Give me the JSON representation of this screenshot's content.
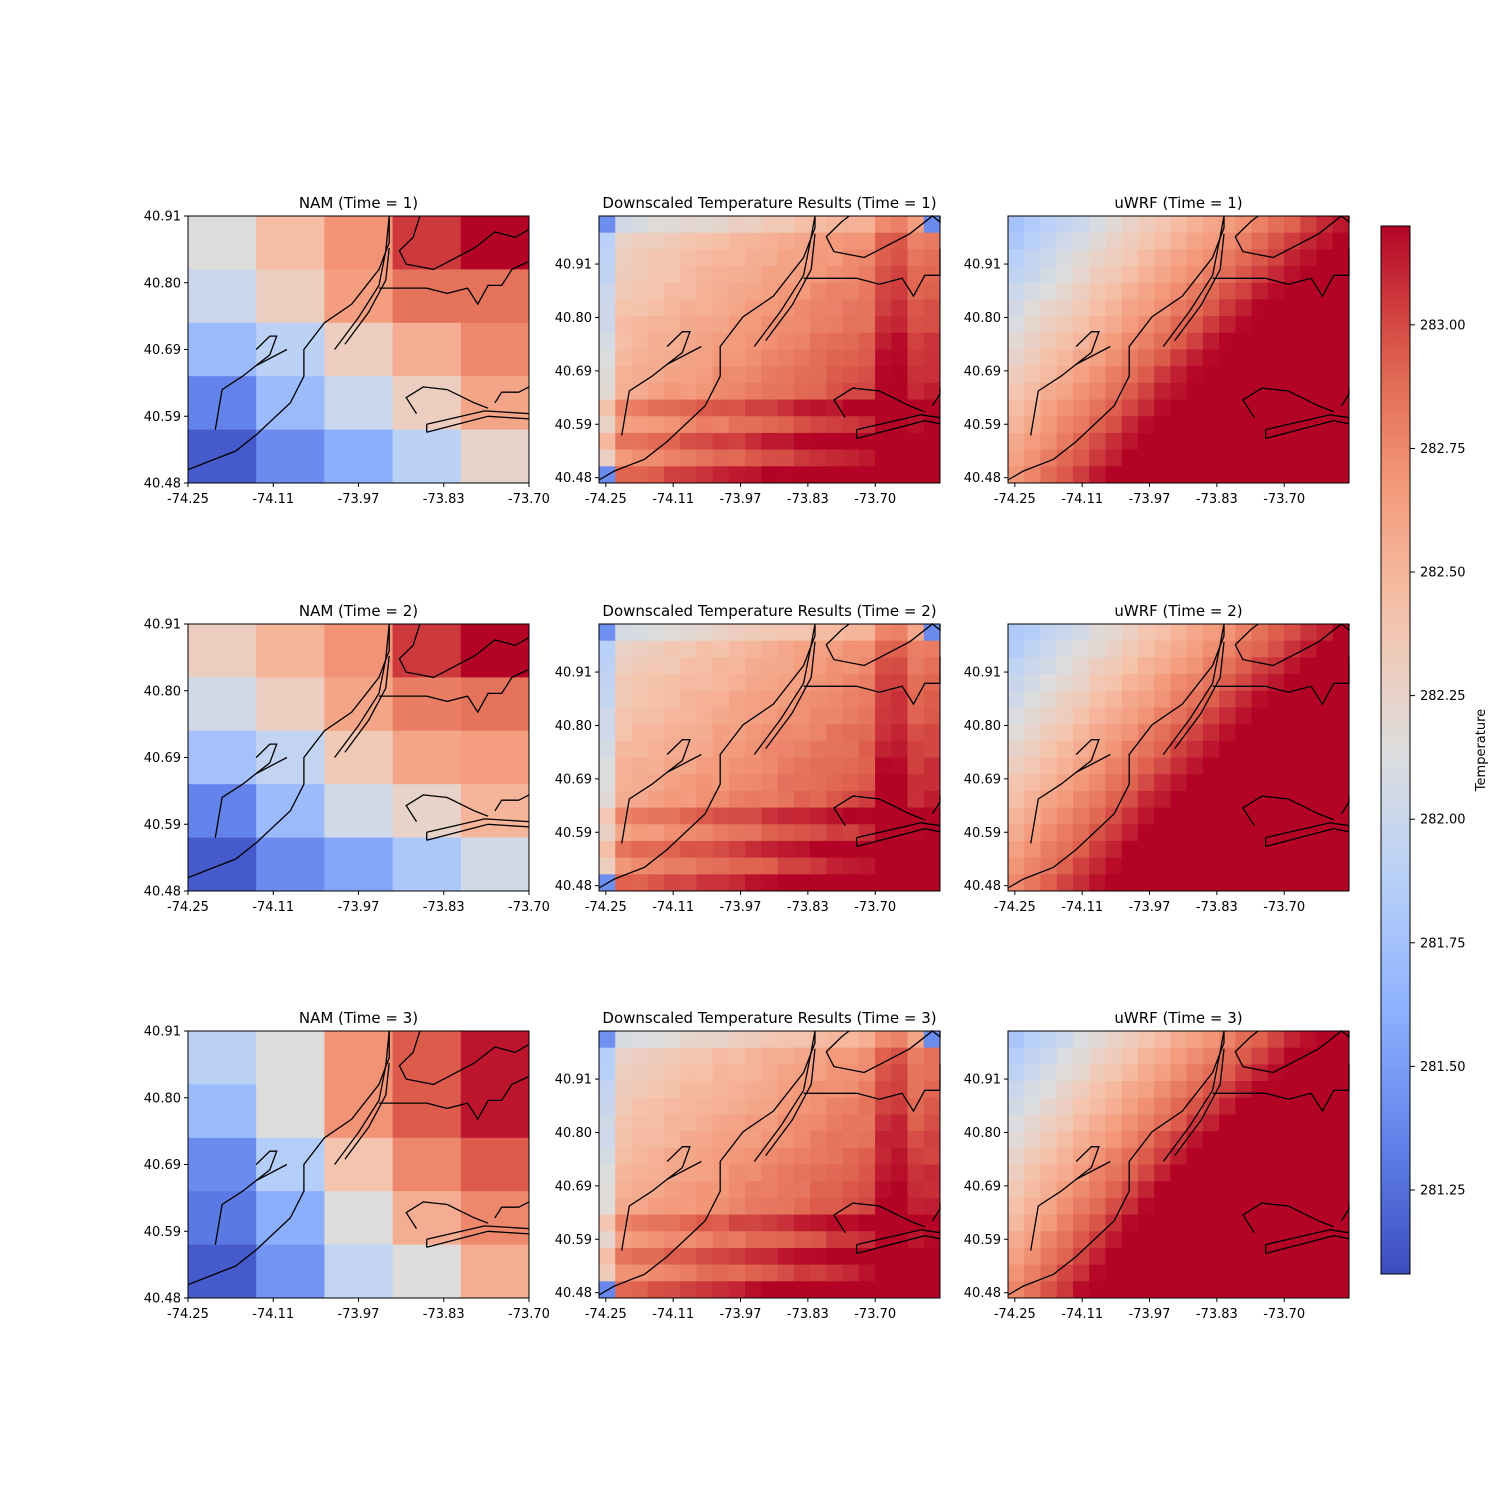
{
  "chart_data": {
    "type": "heatmap",
    "colormap": "coolwarm",
    "colorbar": {
      "label": "Temperature",
      "vmin": 281.08,
      "vmax": 283.2,
      "ticks": [
        "281.25",
        "281.50",
        "281.75",
        "282.00",
        "282.25",
        "282.50",
        "282.75",
        "283.00"
      ]
    },
    "panels": [
      {
        "title": "NAM (Time = 1)",
        "model": "NAM",
        "time": 1,
        "x_ticks": [
          "-74.25",
          "-74.11",
          "-73.97",
          "-73.83",
          "-73.70"
        ],
        "y_ticks": [
          "40.48",
          "40.59",
          "40.69",
          "40.80",
          "40.91"
        ],
        "grid": [
          [
            282.15,
            282.45,
            282.7,
            283.05,
            283.2
          ],
          [
            282.0,
            282.3,
            282.65,
            282.85,
            282.85
          ],
          [
            281.7,
            281.9,
            282.3,
            282.55,
            282.75
          ],
          [
            281.35,
            281.7,
            282.0,
            282.3,
            282.6
          ],
          [
            281.15,
            281.4,
            281.6,
            281.9,
            282.25
          ]
        ]
      },
      {
        "title": "Downscaled Temperature Results (Time = 1)",
        "model": "Downscaled",
        "time": 1,
        "x_ticks": [
          "-74.25",
          "-74.11",
          "-73.97",
          "-73.83",
          "-73.70"
        ],
        "y_ticks": [
          "40.48",
          "40.59",
          "40.69",
          "40.80",
          "40.91"
        ]
      },
      {
        "title": "uWRF (Time = 1)",
        "model": "uWRF",
        "time": 1,
        "x_ticks": [
          "-74.25",
          "-74.11",
          "-73.97",
          "-73.83",
          "-73.70"
        ],
        "y_ticks": [
          "40.48",
          "40.59",
          "40.69",
          "40.80",
          "40.91"
        ]
      },
      {
        "title": "NAM (Time = 2)",
        "model": "NAM",
        "time": 2,
        "x_ticks": [
          "-74.25",
          "-74.11",
          "-73.97",
          "-73.83",
          "-73.70"
        ],
        "y_ticks": [
          "40.48",
          "40.59",
          "40.69",
          "40.80",
          "40.91"
        ],
        "grid": [
          [
            282.3,
            282.5,
            282.7,
            283.05,
            283.2
          ],
          [
            282.05,
            282.3,
            282.6,
            282.8,
            282.85
          ],
          [
            281.75,
            281.95,
            282.35,
            282.6,
            282.65
          ],
          [
            281.35,
            281.7,
            282.05,
            282.25,
            282.5
          ],
          [
            281.15,
            281.4,
            281.55,
            281.8,
            282.05
          ]
        ]
      },
      {
        "title": "Downscaled Temperature Results (Time = 2)",
        "model": "Downscaled",
        "time": 2,
        "x_ticks": [
          "-74.25",
          "-74.11",
          "-73.97",
          "-73.83",
          "-73.70"
        ],
        "y_ticks": [
          "40.48",
          "40.59",
          "40.69",
          "40.80",
          "40.91"
        ]
      },
      {
        "title": "uWRF (Time = 2)",
        "model": "uWRF",
        "time": 2,
        "x_ticks": [
          "-74.25",
          "-74.11",
          "-73.97",
          "-73.83",
          "-73.70"
        ],
        "y_ticks": [
          "40.48",
          "40.59",
          "40.69",
          "40.80",
          "40.91"
        ]
      },
      {
        "title": "NAM (Time = 3)",
        "model": "NAM",
        "time": 3,
        "x_ticks": [
          "-74.25",
          "-74.11",
          "-73.97",
          "-73.83",
          "-73.70"
        ],
        "y_ticks": [
          "40.48",
          "40.59",
          "40.69",
          "40.80",
          "40.91"
        ],
        "grid": [
          [
            281.9,
            282.15,
            282.7,
            282.95,
            283.15
          ],
          [
            281.7,
            282.15,
            282.7,
            282.95,
            283.15
          ],
          [
            281.4,
            281.85,
            282.4,
            282.75,
            282.95
          ],
          [
            281.3,
            281.6,
            282.15,
            282.55,
            282.75
          ],
          [
            281.15,
            281.45,
            281.95,
            282.15,
            282.55
          ]
        ]
      },
      {
        "title": "Downscaled Temperature Results (Time = 3)",
        "model": "Downscaled",
        "time": 3,
        "x_ticks": [
          "-74.25",
          "-74.11",
          "-73.97",
          "-73.83",
          "-73.70"
        ],
        "y_ticks": [
          "40.48",
          "40.59",
          "40.69",
          "40.80",
          "40.91"
        ]
      },
      {
        "title": "uWRF (Time = 3)",
        "model": "uWRF",
        "time": 3,
        "x_ticks": [
          "-74.25",
          "-74.11",
          "-73.97",
          "-73.83",
          "-73.70"
        ],
        "y_ticks": [
          "40.48",
          "40.59",
          "40.69",
          "40.80",
          "40.91"
        ]
      }
    ]
  }
}
